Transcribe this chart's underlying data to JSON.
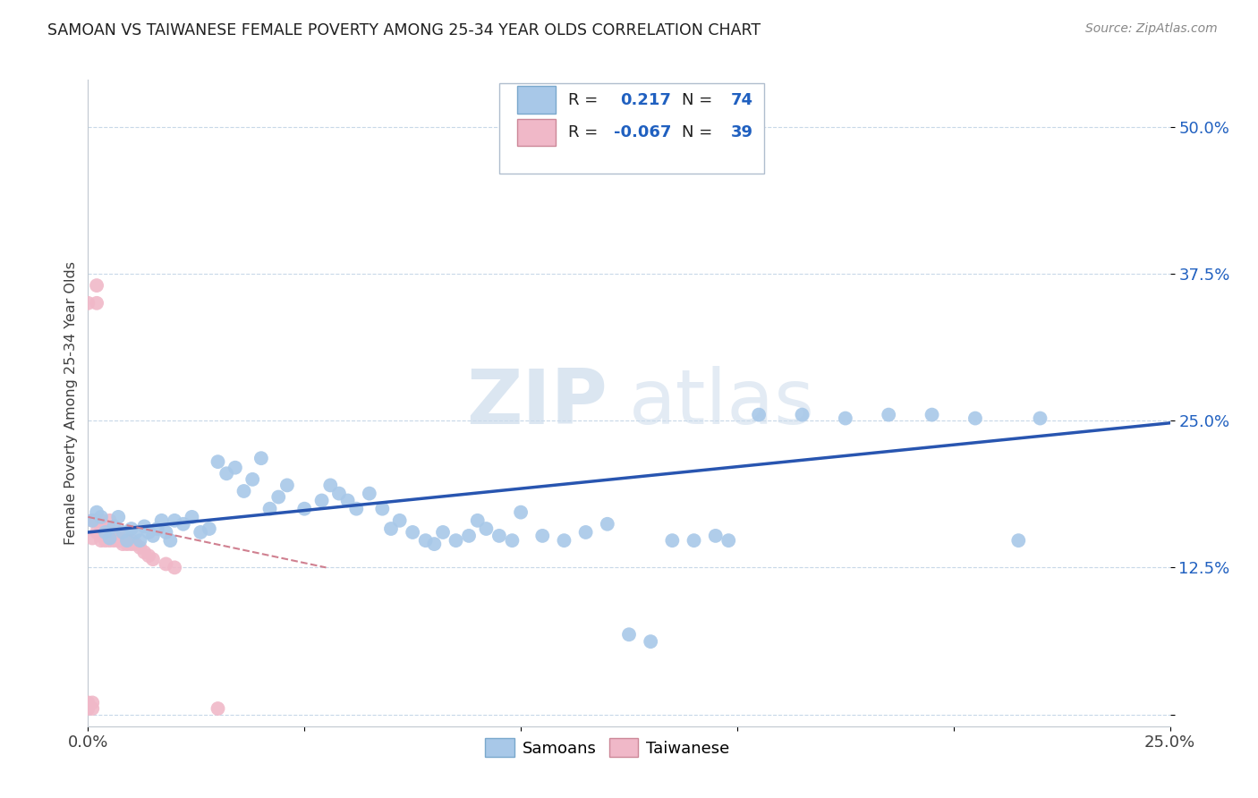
{
  "title": "SAMOAN VS TAIWANESE FEMALE POVERTY AMONG 25-34 YEAR OLDS CORRELATION CHART",
  "source": "Source: ZipAtlas.com",
  "ylabel": "Female Poverty Among 25-34 Year Olds",
  "xlim": [
    0.0,
    0.25
  ],
  "ylim": [
    -0.01,
    0.54
  ],
  "samoan_color": "#a8c8e8",
  "taiwanese_color": "#f0b8c8",
  "samoan_line_color": "#2855b0",
  "taiwanese_line_color": "#d08090",
  "legend_r_samoan": "0.217",
  "legend_n_samoan": "74",
  "legend_r_taiwanese": "-0.067",
  "legend_n_taiwanese": "39",
  "legend_label_samoan": "Samoans",
  "legend_label_taiwanese": "Taiwanese",
  "watermark_zip": "ZIP",
  "watermark_atlas": "atlas",
  "background_color": "#ffffff",
  "samoan_x": [
    0.001,
    0.002,
    0.003,
    0.004,
    0.005,
    0.006,
    0.007,
    0.008,
    0.009,
    0.01,
    0.011,
    0.012,
    0.013,
    0.014,
    0.015,
    0.016,
    0.017,
    0.018,
    0.019,
    0.02,
    0.022,
    0.024,
    0.026,
    0.028,
    0.03,
    0.032,
    0.034,
    0.036,
    0.038,
    0.04,
    0.042,
    0.044,
    0.046,
    0.05,
    0.054,
    0.056,
    0.058,
    0.06,
    0.062,
    0.065,
    0.068,
    0.07,
    0.072,
    0.075,
    0.078,
    0.08,
    0.082,
    0.085,
    0.088,
    0.09,
    0.092,
    0.095,
    0.098,
    0.1,
    0.105,
    0.11,
    0.115,
    0.12,
    0.125,
    0.13,
    0.135,
    0.14,
    0.145,
    0.148,
    0.15,
    0.152,
    0.155,
    0.165,
    0.175,
    0.185,
    0.195,
    0.205,
    0.215,
    0.22
  ],
  "samoan_y": [
    0.165,
    0.172,
    0.168,
    0.155,
    0.15,
    0.16,
    0.168,
    0.155,
    0.148,
    0.158,
    0.155,
    0.148,
    0.16,
    0.155,
    0.152,
    0.158,
    0.165,
    0.155,
    0.148,
    0.165,
    0.162,
    0.168,
    0.155,
    0.158,
    0.215,
    0.205,
    0.21,
    0.19,
    0.2,
    0.218,
    0.175,
    0.185,
    0.195,
    0.175,
    0.182,
    0.195,
    0.188,
    0.182,
    0.175,
    0.188,
    0.175,
    0.158,
    0.165,
    0.155,
    0.148,
    0.145,
    0.155,
    0.148,
    0.152,
    0.165,
    0.158,
    0.152,
    0.148,
    0.172,
    0.152,
    0.148,
    0.155,
    0.162,
    0.068,
    0.062,
    0.148,
    0.148,
    0.152,
    0.148,
    0.495,
    0.488,
    0.255,
    0.255,
    0.252,
    0.255,
    0.255,
    0.252,
    0.148,
    0.252
  ],
  "taiwanese_x": [
    0.0,
    0.0,
    0.0,
    0.001,
    0.001,
    0.001,
    0.001,
    0.002,
    0.002,
    0.002,
    0.002,
    0.003,
    0.003,
    0.003,
    0.003,
    0.004,
    0.004,
    0.004,
    0.005,
    0.005,
    0.005,
    0.006,
    0.006,
    0.007,
    0.007,
    0.008,
    0.008,
    0.009,
    0.009,
    0.01,
    0.01,
    0.011,
    0.012,
    0.013,
    0.014,
    0.015,
    0.018,
    0.02,
    0.03
  ],
  "taiwanese_y": [
    0.005,
    0.01,
    0.35,
    0.005,
    0.01,
    0.15,
    0.165,
    0.155,
    0.165,
    0.35,
    0.365,
    0.155,
    0.148,
    0.16,
    0.165,
    0.152,
    0.148,
    0.16,
    0.148,
    0.155,
    0.165,
    0.148,
    0.155,
    0.148,
    0.155,
    0.145,
    0.148,
    0.145,
    0.148,
    0.145,
    0.148,
    0.145,
    0.142,
    0.138,
    0.135,
    0.132,
    0.128,
    0.125,
    0.005
  ],
  "samoan_trendline_x0": 0.0,
  "samoan_trendline_y0": 0.155,
  "samoan_trendline_x1": 0.25,
  "samoan_trendline_y1": 0.248,
  "taiwanese_trendline_x0": 0.0,
  "taiwanese_trendline_y0": 0.168,
  "taiwanese_trendline_x1": 0.055,
  "taiwanese_trendline_y1": 0.125
}
